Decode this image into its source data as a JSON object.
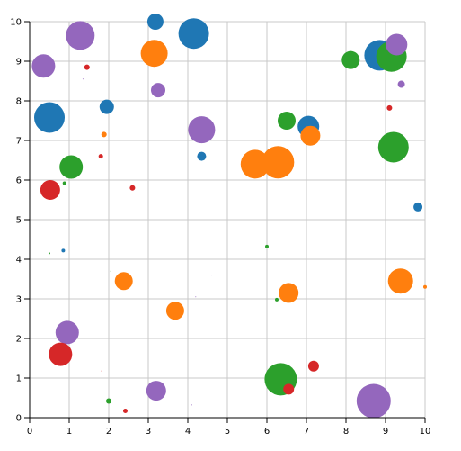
{
  "chart_data": {
    "type": "scatter",
    "title": "",
    "xlabel": "",
    "ylabel": "",
    "xlim": [
      0,
      10
    ],
    "ylim": [
      0,
      10
    ],
    "grid": true,
    "xticks": [
      "0",
      "1",
      "2",
      "3",
      "4",
      "5",
      "6",
      "7",
      "8",
      "9",
      "10"
    ],
    "yticks": [
      "0",
      "1",
      "2",
      "3",
      "4",
      "5",
      "6",
      "7",
      "8",
      "9",
      "10"
    ],
    "colors": {
      "blue": "#1f77b4",
      "orange": "#ff7f0e",
      "green": "#2ca02c",
      "red": "#d62728",
      "purple": "#9467bd"
    },
    "points": [
      {
        "x": 3.18,
        "y": 10.0,
        "size": 9,
        "color": "blue"
      },
      {
        "x": 4.15,
        "y": 9.7,
        "size": 17,
        "color": "blue"
      },
      {
        "x": 1.28,
        "y": 9.65,
        "size": 16,
        "color": "purple"
      },
      {
        "x": 0.35,
        "y": 8.88,
        "size": 13,
        "color": "purple"
      },
      {
        "x": 1.45,
        "y": 8.85,
        "size": 3,
        "color": "red"
      },
      {
        "x": 1.35,
        "y": 8.55,
        "size": 0.5,
        "color": "purple"
      },
      {
        "x": 3.15,
        "y": 9.2,
        "size": 15,
        "color": "orange"
      },
      {
        "x": 3.25,
        "y": 8.27,
        "size": 8,
        "color": "purple"
      },
      {
        "x": 1.95,
        "y": 7.85,
        "size": 8,
        "color": "blue"
      },
      {
        "x": 0.5,
        "y": 7.58,
        "size": 17,
        "color": "blue"
      },
      {
        "x": 1.88,
        "y": 7.15,
        "size": 3,
        "color": "orange"
      },
      {
        "x": 4.35,
        "y": 7.27,
        "size": 15,
        "color": "purple"
      },
      {
        "x": 4.35,
        "y": 6.6,
        "size": 5,
        "color": "blue"
      },
      {
        "x": 1.8,
        "y": 6.6,
        "size": 2.5,
        "color": "red"
      },
      {
        "x": 1.05,
        "y": 6.33,
        "size": 13,
        "color": "green"
      },
      {
        "x": 0.88,
        "y": 5.92,
        "size": 2,
        "color": "green"
      },
      {
        "x": 0.52,
        "y": 5.75,
        "size": 11,
        "color": "red"
      },
      {
        "x": 2.6,
        "y": 5.8,
        "size": 3,
        "color": "red"
      },
      {
        "x": 5.7,
        "y": 6.4,
        "size": 16,
        "color": "orange"
      },
      {
        "x": 6.28,
        "y": 6.45,
        "size": 18,
        "color": "orange"
      },
      {
        "x": 6.5,
        "y": 7.5,
        "size": 10,
        "color": "green"
      },
      {
        "x": 7.05,
        "y": 7.35,
        "size": 12,
        "color": "blue"
      },
      {
        "x": 7.1,
        "y": 7.12,
        "size": 11,
        "color": "orange"
      },
      {
        "x": 8.12,
        "y": 9.03,
        "size": 10,
        "color": "green"
      },
      {
        "x": 8.85,
        "y": 9.15,
        "size": 17,
        "color": "blue"
      },
      {
        "x": 9.15,
        "y": 9.12,
        "size": 17,
        "color": "green"
      },
      {
        "x": 9.28,
        "y": 9.42,
        "size": 12,
        "color": "purple"
      },
      {
        "x": 9.4,
        "y": 8.42,
        "size": 4,
        "color": "purple"
      },
      {
        "x": 9.1,
        "y": 7.82,
        "size": 3,
        "color": "red"
      },
      {
        "x": 9.2,
        "y": 6.83,
        "size": 17,
        "color": "green"
      },
      {
        "x": 9.82,
        "y": 5.32,
        "size": 5,
        "color": "blue"
      },
      {
        "x": 0.85,
        "y": 4.22,
        "size": 2,
        "color": "blue"
      },
      {
        "x": 0.5,
        "y": 4.15,
        "size": 1,
        "color": "green"
      },
      {
        "x": 6.0,
        "y": 4.32,
        "size": 2,
        "color": "green"
      },
      {
        "x": 2.05,
        "y": 3.7,
        "size": 0.5,
        "color": "green"
      },
      {
        "x": 4.6,
        "y": 3.6,
        "size": 0.5,
        "color": "purple"
      },
      {
        "x": 2.38,
        "y": 3.45,
        "size": 10,
        "color": "orange"
      },
      {
        "x": 4.2,
        "y": 3.05,
        "size": 0.5,
        "color": "purple"
      },
      {
        "x": 6.55,
        "y": 3.15,
        "size": 11,
        "color": "orange"
      },
      {
        "x": 6.25,
        "y": 2.98,
        "size": 2,
        "color": "green"
      },
      {
        "x": 3.68,
        "y": 2.7,
        "size": 10,
        "color": "orange"
      },
      {
        "x": 9.38,
        "y": 3.45,
        "size": 14,
        "color": "orange"
      },
      {
        "x": 10.0,
        "y": 3.3,
        "size": 2,
        "color": "orange"
      },
      {
        "x": 0.95,
        "y": 2.15,
        "size": 13,
        "color": "purple"
      },
      {
        "x": 0.78,
        "y": 1.6,
        "size": 13,
        "color": "red"
      },
      {
        "x": 1.82,
        "y": 1.18,
        "size": 0.5,
        "color": "red"
      },
      {
        "x": 6.35,
        "y": 0.97,
        "size": 18,
        "color": "green"
      },
      {
        "x": 6.55,
        "y": 0.72,
        "size": 6,
        "color": "red"
      },
      {
        "x": 7.18,
        "y": 1.3,
        "size": 6,
        "color": "red"
      },
      {
        "x": 3.2,
        "y": 0.68,
        "size": 11,
        "color": "purple"
      },
      {
        "x": 2.0,
        "y": 0.42,
        "size": 3,
        "color": "green"
      },
      {
        "x": 4.1,
        "y": 0.32,
        "size": 0.5,
        "color": "purple"
      },
      {
        "x": 2.42,
        "y": 0.17,
        "size": 2.5,
        "color": "red"
      },
      {
        "x": 8.7,
        "y": 0.42,
        "size": 19,
        "color": "purple"
      }
    ]
  }
}
